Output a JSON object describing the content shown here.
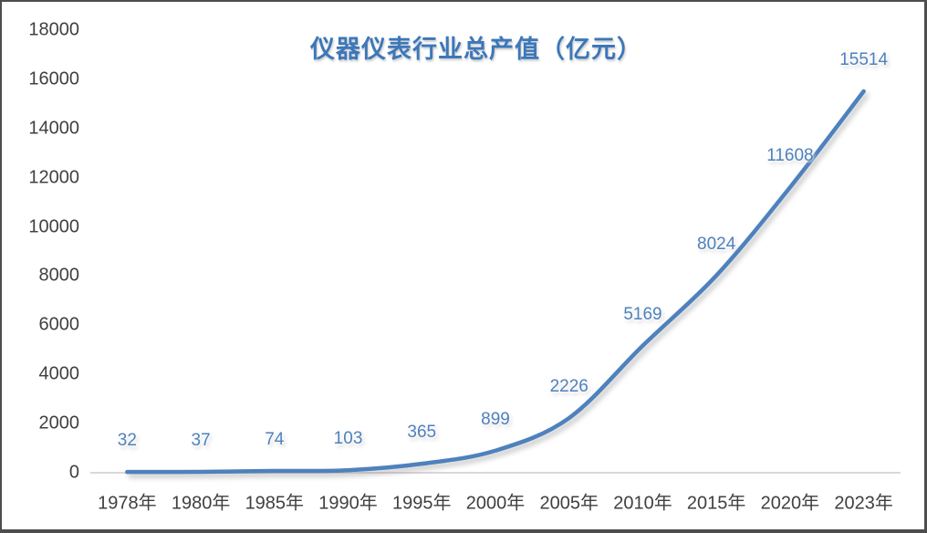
{
  "chart_data": {
    "type": "line",
    "title": "仪器仪表行业总产值（亿元）",
    "categories": [
      "1978年",
      "1980年",
      "1985年",
      "1990年",
      "1995年",
      "2000年",
      "2005年",
      "2010年",
      "2015年",
      "2020年",
      "2023年"
    ],
    "series": [
      {
        "name": "仪器仪表行业总产值",
        "values": [
          32,
          37,
          74,
          103,
          365,
          899,
          2226,
          5169,
          8024,
          11608,
          15514
        ]
      }
    ],
    "data_labels": [
      "32",
      "37",
      "74",
      "103",
      "365",
      "899",
      "2226",
      "5169",
      "8024",
      "11608",
      "15514"
    ],
    "xlabel": "",
    "ylabel": "",
    "yticks": [
      0,
      2000,
      4000,
      6000,
      8000,
      10000,
      12000,
      14000,
      16000,
      18000
    ],
    "ylim": [
      0,
      18000
    ],
    "grid": false,
    "legend_position": "none",
    "line_style": "smooth",
    "colors": {
      "line": "#4E81BD",
      "data_label": "#4E81BD",
      "title": "#3C77B9",
      "axis_text": "#404040",
      "axis_line": "#D9D9D9",
      "background": "#FFFFFF"
    }
  }
}
